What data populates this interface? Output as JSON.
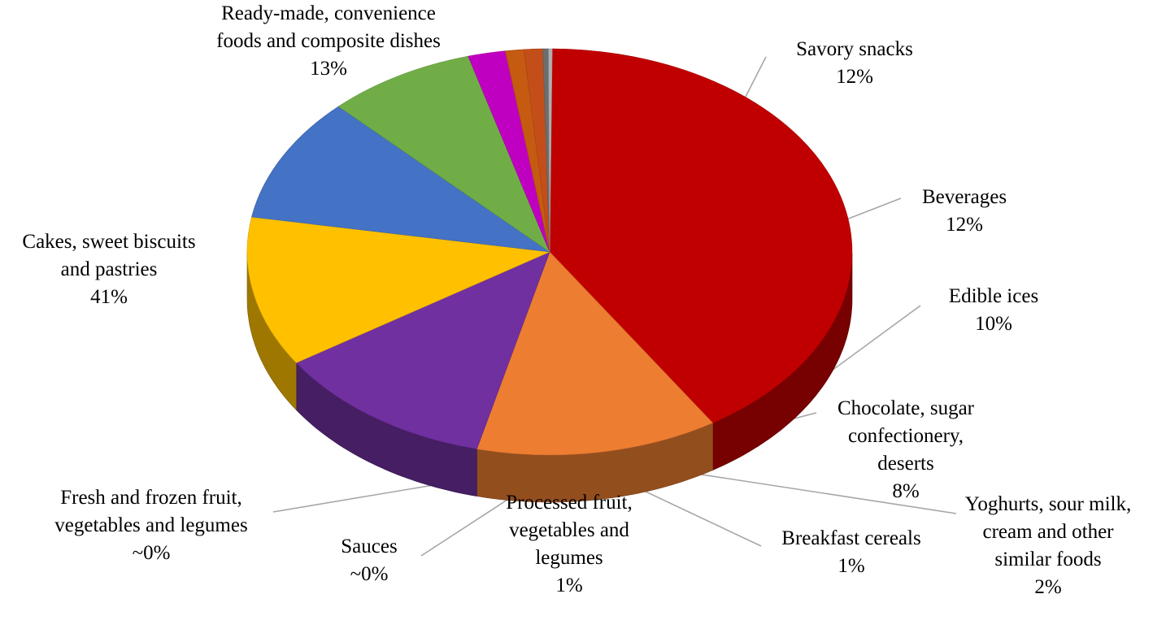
{
  "chart_data": {
    "type": "pie",
    "style": "3d",
    "title": "",
    "categories": [
      "Cakes, sweet biscuits and pastries",
      "Ready-made, convenience foods and composite dishes",
      "Savory snacks",
      "Beverages",
      "Edible ices",
      "Chocolate, sugar confectionery, deserts",
      "Yoghurts, sour milk, cream and other similar foods",
      "Breakfast cereals",
      "Processed fruit, vegetables and legumes",
      "Sauces",
      "Fresh and frozen fruit, vegetables and legumes"
    ],
    "values": [
      41,
      13,
      12,
      12,
      10,
      8,
      2,
      1,
      1,
      0.3,
      0.2
    ],
    "value_labels": [
      "41%",
      "13%",
      "12%",
      "12%",
      "10%",
      "8%",
      "2%",
      "1%",
      "1%",
      "~0%",
      "~0%"
    ],
    "colors": [
      "#c00000",
      "#ed7d31",
      "#7030a0",
      "#ffc000",
      "#4472c4",
      "#70ad47",
      "#c000c0",
      "#c55a11",
      "#c44e1a",
      "#6d6d6d",
      "#b0b0b0"
    ],
    "label_text": [
      "Cakes, sweet biscuits\nand pastries",
      "Ready-made, convenience\nfoods and composite dishes",
      "Savory snacks",
      "Beverages",
      "Edible ices",
      "Chocolate, sugar\nconfectionery,\ndeserts",
      "Yoghurts, sour milk,\ncream and other\nsimilar foods",
      "Breakfast cereals",
      "Processed fruit,\nvegetables and\nlegumes",
      "Sauces",
      "Fresh and frozen fruit,\nvegetables and legumes"
    ]
  }
}
